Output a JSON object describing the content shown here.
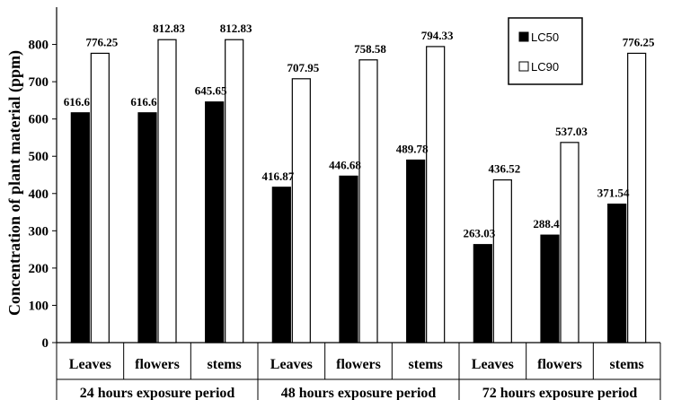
{
  "chart_data": {
    "type": "bar",
    "title": "",
    "xlabel": "",
    "ylabel": "Concentration of plant material (ppm)",
    "ylim": [
      0,
      900
    ],
    "yticks": [
      0,
      100,
      200,
      300,
      400,
      500,
      600,
      700,
      800
    ],
    "grid": false,
    "legend_position": "top-right",
    "groups": [
      "24 hours exposure period",
      "48 hours exposure period",
      "72 hours exposure period"
    ],
    "categories": [
      "Leaves",
      "flowers",
      "stems",
      "Leaves",
      "flowers",
      "stems",
      "Leaves",
      "flowers",
      "stems"
    ],
    "series": [
      {
        "name": "LC50",
        "color": "#000000",
        "values": [
          616.6,
          616.6,
          645.65,
          416.87,
          446.68,
          489.78,
          263.03,
          288.4,
          371.54
        ],
        "labels": [
          "616.6",
          "616.6",
          "645.65",
          "416.87",
          "446.68",
          "489.78",
          "263.03",
          "288.4",
          "371.54"
        ]
      },
      {
        "name": "LC90",
        "color": "#ffffff",
        "values": [
          776.25,
          812.83,
          812.83,
          707.95,
          758.58,
          794.33,
          436.52,
          537.03,
          776.25
        ],
        "labels": [
          "776.25",
          "812.83",
          "812.83",
          "707.95",
          "758.58",
          "794.33",
          "436.52",
          "537.03",
          "776.25"
        ]
      }
    ]
  }
}
